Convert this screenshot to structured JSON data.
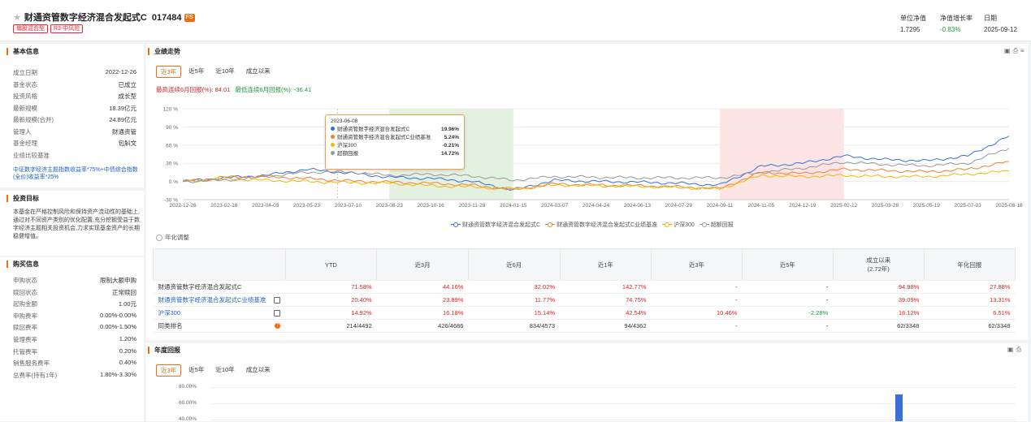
{
  "header": {
    "fund_name": "财通资管数字经济混合发起式C",
    "fund_code": "017484",
    "fs_badge": "FS",
    "tags": [
      "偏股混合型",
      "R3-中风险"
    ],
    "stats": [
      {
        "label": "单位净值",
        "value": "1.7295"
      },
      {
        "label": "净值增长率",
        "value": "-0.83%"
      },
      {
        "label": "日期",
        "value": "2025-09-12"
      }
    ]
  },
  "basic_info": {
    "title": "基本信息",
    "rows": [
      {
        "label": "成立日期",
        "value": "2022-12-26"
      },
      {
        "label": "基金状态",
        "value": "已成立"
      },
      {
        "label": "投资风格",
        "value": "成长型"
      },
      {
        "label": "最新规模",
        "value": "18.39亿元"
      },
      {
        "label": "最新规模(合并)",
        "value": "24.89亿元"
      },
      {
        "label": "管理人",
        "value": "财通资管"
      },
      {
        "label": "基金经理",
        "value": "包斛文"
      },
      {
        "label": "业绩比较基准",
        "value": ""
      }
    ],
    "benchmark_text": "中证数字经济主题指数收益率*75%+中债综合指数(全价)收益率*25%"
  },
  "investment_goal": {
    "title": "投资目标",
    "text": "本基金在严格控制风险和保持资产流动性的基础上,通过对不同资产类别的优化配置,充分挖掘受益于数字经济主题相关投资机会,力求实现基金资产的长期稳健增值。"
  },
  "purchase_info": {
    "title": "购买信息",
    "rows": [
      {
        "label": "申购状态",
        "value": "限制大额申购"
      },
      {
        "label": "赎回状态",
        "value": "正常赎回"
      },
      {
        "label": "起购金额",
        "value": "1.00元"
      },
      {
        "label": "申购费率",
        "value": "0.00%-0.00%"
      },
      {
        "label": "赎回费率",
        "value": "0.00%-1.50%"
      },
      {
        "label": "管理费率",
        "value": "1.20%"
      },
      {
        "label": "托管费率",
        "value": "0.20%"
      },
      {
        "label": "销售服务费率",
        "value": "0.40%"
      },
      {
        "label": "总费率(持有1年)",
        "value": "1.80%-3.30%"
      }
    ]
  },
  "performance": {
    "title": "业绩走势",
    "tabs": [
      "近3年",
      "近5年",
      "近10年",
      "成立以来"
    ],
    "max_up_label": "最高连续6月回报(%):",
    "max_up_value": "84.01",
    "max_down_label": "最低连续6月回报(%):",
    "max_down_value": "-36.41",
    "annualized_label": "年化调整",
    "tooltip": {
      "date": "2023-06-08",
      "rows": [
        {
          "name": "财通资管数字经济混合发起式C",
          "value": "19.96%",
          "color": "#3a6fd8"
        },
        {
          "name": "财通资管数字经济混合发起式C业绩基准",
          "value": "5.24%",
          "color": "#f08030"
        },
        {
          "name": "沪深300",
          "value": "-0.21%",
          "color": "#f5b800"
        },
        {
          "name": "超额回报",
          "value": "14.72%",
          "color": "#999999"
        }
      ]
    }
  },
  "chart_data": {
    "type": "line",
    "x": [
      "2022-12-26",
      "2023-02-16",
      "2023-04-03",
      "2023-05-23",
      "2023-07-10",
      "2023-08-23",
      "2023-10-16",
      "2023-11-29",
      "2024-01-15",
      "2024-03-07",
      "2024-04-24",
      "2024-06-13",
      "2024-07-29",
      "2024-09-11",
      "2024-11-05",
      "2024-12-19",
      "2025-02-12",
      "2025-03-28",
      "2025-05-19",
      "2025-07-03",
      "2025-08-18"
    ],
    "yticks": [
      "120 %",
      "90 %",
      "60 %",
      "30 %",
      "0 %",
      "-30 %"
    ],
    "ylim": [
      -30,
      120
    ],
    "series": [
      {
        "name": "财通资管数字经济混合发起式C",
        "color": "#3a6fd8",
        "values": [
          0,
          6,
          10,
          20,
          14,
          7,
          5,
          0,
          -14,
          2,
          0,
          -1,
          -3,
          -6,
          25,
          30,
          42,
          36,
          34,
          42,
          75
        ]
      },
      {
        "name": "财通资管数字经济混合发起式C业绩基准",
        "color": "#f08030",
        "values": [
          0,
          7,
          8,
          5,
          1,
          -1,
          -3,
          -6,
          -14,
          -4,
          -6,
          -7,
          -9,
          -12,
          15,
          13,
          20,
          18,
          16,
          20,
          33
        ]
      },
      {
        "name": "沪深300",
        "color": "#f5b800",
        "values": [
          0,
          4,
          2,
          0,
          -2,
          -3,
          -7,
          -9,
          -12,
          -6,
          -7,
          -8,
          -10,
          -12,
          10,
          8,
          10,
          8,
          8,
          12,
          17
        ]
      },
      {
        "name": "超额回报",
        "color": "#999999",
        "values": [
          0,
          2,
          8,
          15,
          16,
          10,
          12,
          9,
          2,
          8,
          7,
          6,
          6,
          6,
          15,
          22,
          32,
          28,
          26,
          30,
          55
        ]
      }
    ],
    "shaded_regions": [
      {
        "from": "2023-08-23",
        "to": "2024-01-15",
        "color": "#e3f1e1"
      },
      {
        "from": "2024-09-11",
        "to": "2025-02-12",
        "color": "#fde4e4"
      }
    ]
  },
  "perf_table": {
    "headers": [
      "",
      "YTD",
      "近3月",
      "近6月",
      "近1年",
      "近3年",
      "近5年",
      "成立以来\n(2.72年)",
      "年化回报"
    ],
    "rows": [
      {
        "name": "财通资管数字经济混合发起式C",
        "cells": [
          "71.58%",
          "44.16%",
          "32.02%",
          "142.77%",
          "-",
          "-",
          "94.98%",
          "27.88%"
        ]
      },
      {
        "name": "财通资管数字经济混合发起式C业绩基准",
        "cells": [
          "20.40%",
          "23.89%",
          "11.77%",
          "74.75%",
          "-",
          "-",
          "39.09%",
          "13.31%"
        ]
      },
      {
        "name": "沪深300",
        "cells": [
          "14.92%",
          "16.18%",
          "15.14%",
          "42.54%",
          "10.46%",
          "-2.28%",
          "18.12%",
          "6.51%"
        ]
      },
      {
        "name": "同类排名",
        "cells": [
          "214/4492",
          "426/4686",
          "834/4573",
          "94/4362",
          "-",
          "-",
          "62/3348",
          "62/3348"
        ]
      }
    ]
  },
  "annual": {
    "title": "年度回报",
    "tabs": [
      "近3年",
      "近5年",
      "近10年",
      "成立以来"
    ],
    "yticks": [
      "80.00%",
      "60.00%",
      "40.00%"
    ]
  }
}
